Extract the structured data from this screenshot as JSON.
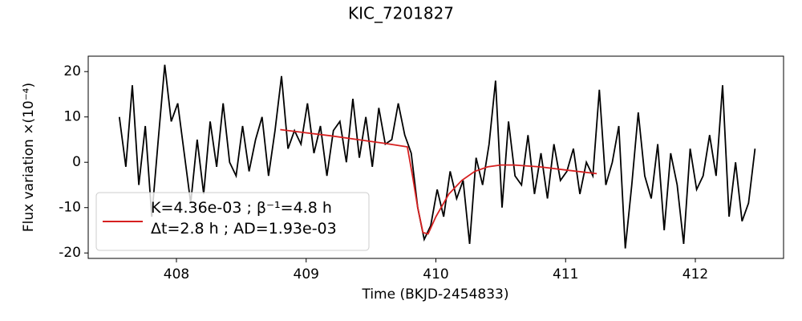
{
  "chart_data": {
    "type": "line",
    "title": "KIC_7201827",
    "xlabel": "Time (BKJD-2454833)",
    "ylabel": "Flux variation ×(10⁻⁴)",
    "xlim": [
      407.32,
      412.68
    ],
    "ylim": [
      -21.2,
      23.4
    ],
    "xticks": [
      408,
      409,
      410,
      411,
      412
    ],
    "yticks": [
      -20,
      -10,
      0,
      10,
      20
    ],
    "legend": "lower left",
    "series": [
      {
        "color": "#000000",
        "x": [
          407.56,
          407.61,
          407.66,
          407.71,
          407.76,
          407.81,
          407.86,
          407.91,
          407.96,
          408.01,
          408.06,
          408.11,
          408.16,
          408.21,
          408.26,
          408.31,
          408.36,
          408.41,
          408.46,
          408.51,
          408.56,
          408.61,
          408.66,
          408.71,
          408.76,
          408.81,
          408.86,
          408.91,
          408.96,
          409.01,
          409.06,
          409.11,
          409.16,
          409.21,
          409.26,
          409.31,
          409.36,
          409.41,
          409.46,
          409.51,
          409.56,
          409.61,
          409.66,
          409.71,
          409.76,
          409.81,
          409.86,
          409.91,
          409.96,
          410.01,
          410.06,
          410.11,
          410.16,
          410.21,
          410.26,
          410.31,
          410.36,
          410.41,
          410.46,
          410.51,
          410.56,
          410.61,
          410.66,
          410.71,
          410.76,
          410.81,
          410.86,
          410.91,
          410.96,
          411.01,
          411.06,
          411.11,
          411.16,
          411.21,
          411.26,
          411.31,
          411.36,
          411.41,
          411.46,
          411.51,
          411.56,
          411.61,
          411.66,
          411.71,
          411.76,
          411.81,
          411.86,
          411.91,
          411.96,
          412.01,
          412.06,
          412.11,
          412.16,
          412.21,
          412.26,
          412.31,
          412.36,
          412.41,
          412.46
        ],
        "values": [
          10,
          -1,
          17,
          -5,
          8,
          -12,
          5,
          21.5,
          9,
          13,
          2,
          -9,
          5,
          -7,
          9,
          -1,
          13,
          0,
          -3,
          8,
          -2,
          5,
          10,
          -3,
          7,
          19,
          3,
          7,
          4,
          13,
          2,
          8,
          -3,
          7,
          9,
          0,
          14,
          1,
          10,
          -1,
          12,
          4,
          5,
          13,
          6,
          2,
          -10,
          -17,
          -14,
          -6,
          -12,
          -2,
          -8,
          -4,
          -18,
          1,
          -5,
          4,
          18,
          -10,
          9,
          -3,
          -5,
          6,
          -7,
          2,
          -8,
          4,
          -4,
          -2,
          3,
          -7,
          0,
          -3,
          16,
          -5,
          0,
          8,
          -19,
          -5,
          11,
          -3,
          -8,
          4,
          -15,
          2,
          -5,
          -18,
          3,
          -6,
          -3,
          6,
          -3,
          17,
          -12,
          0,
          -13,
          -9,
          3
        ]
      },
      {
        "name": "K=4.36e-03 ; β⁻¹=4.8 h\nΔt=2.8 h ; AD=1.93e-03",
        "color": "#d62020",
        "x": [
          408.8,
          409.0,
          409.2,
          409.4,
          409.6,
          409.78,
          409.82,
          409.86,
          409.9,
          409.94,
          410.0,
          410.1,
          410.2,
          410.3,
          410.4,
          410.5,
          410.6,
          410.8,
          411.0,
          411.24
        ],
        "values": [
          7.2,
          6.5,
          5.8,
          5.0,
          4.2,
          3.4,
          -3,
          -10,
          -15.5,
          -15.8,
          -12,
          -7,
          -4,
          -2,
          -1,
          -0.6,
          -0.6,
          -1,
          -1.7,
          -2.5
        ]
      }
    ]
  }
}
